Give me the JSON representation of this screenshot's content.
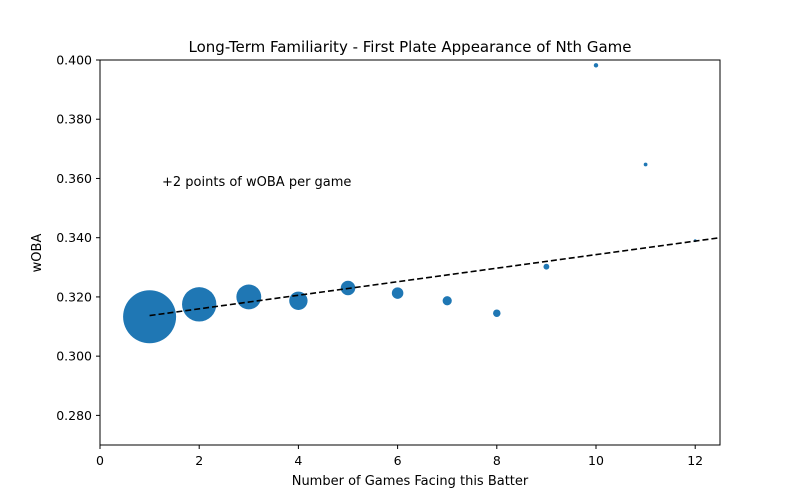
{
  "chart_data": {
    "type": "scatter",
    "title": "Long-Term Familiarity - First Plate Appearance of Nth Game",
    "xlabel": "Number of Games Facing this Batter",
    "ylabel": "wOBA",
    "xlim": [
      0,
      12.5
    ],
    "ylim": [
      0.27,
      0.4
    ],
    "xticks": [
      0,
      2,
      4,
      6,
      8,
      10,
      12
    ],
    "yticks": [
      0.28,
      0.3,
      0.32,
      0.34,
      0.36,
      0.38,
      0.4
    ],
    "ytick_labels": [
      "0.280",
      "0.300",
      "0.320",
      "0.340",
      "0.360",
      "0.380",
      "0.400"
    ],
    "point_color": "#1f77b4",
    "points": [
      {
        "x": 1,
        "y": 0.3133,
        "size": 1.0
      },
      {
        "x": 2,
        "y": 0.3175,
        "size": 0.42
      },
      {
        "x": 3,
        "y": 0.32,
        "size": 0.22
      },
      {
        "x": 4,
        "y": 0.3187,
        "size": 0.12
      },
      {
        "x": 5,
        "y": 0.323,
        "size": 0.075
      },
      {
        "x": 6,
        "y": 0.3213,
        "size": 0.047
      },
      {
        "x": 7,
        "y": 0.3187,
        "size": 0.03
      },
      {
        "x": 8,
        "y": 0.3145,
        "size": 0.02
      },
      {
        "x": 9,
        "y": 0.3302,
        "size": 0.012
      },
      {
        "x": 10,
        "y": 0.3982,
        "size": 0.007
      },
      {
        "x": 11,
        "y": 0.3647,
        "size": 0.005
      },
      {
        "x": 12,
        "y": 0.339,
        "size": 0.003
      }
    ],
    "trendline": {
      "x": [
        1,
        12.5
      ],
      "y": [
        0.3137,
        0.34
      ],
      "style": "dashed",
      "color": "#000000"
    },
    "annotation": {
      "text": "+2 points of wOBA per game",
      "x": 1.25,
      "y": 0.359
    }
  }
}
